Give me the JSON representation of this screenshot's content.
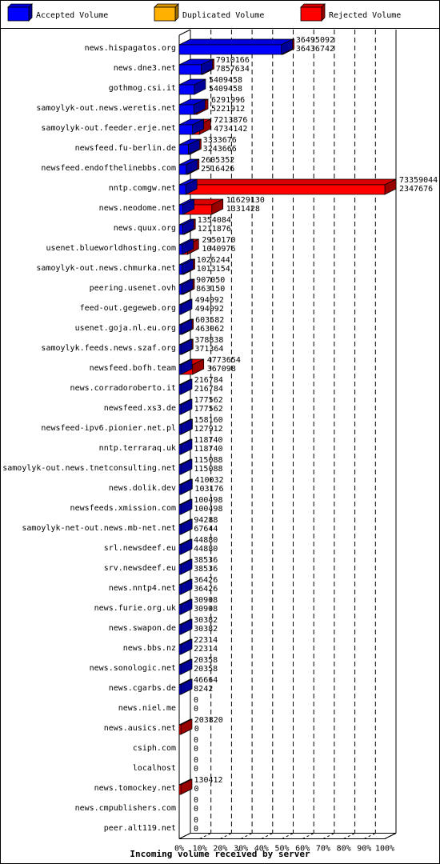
{
  "chart_data": {
    "type": "bar",
    "orientation": "horizontal",
    "title": "Incoming volume received by server",
    "xlim": [
      0,
      100
    ],
    "x_ticks": [
      "0%",
      "10%",
      "20%",
      "30%",
      "40%",
      "50%",
      "60%",
      "70%",
      "80%",
      "90%",
      "100%"
    ],
    "max_value": 73359044,
    "legend_position": "top",
    "grid": true,
    "legend": [
      {
        "name": "Accepted Volume",
        "color": "#0000ff"
      },
      {
        "name": "Duplicated Volume",
        "color": "#ffb000"
      },
      {
        "name": "Rejected Volume",
        "color": "#ff0000"
      }
    ],
    "categories": [
      {
        "label": "news.hispagatos.org",
        "total": 36495092,
        "accepted": 36436742
      },
      {
        "label": "news.dne3.net",
        "total": 7910166,
        "accepted": 7857634
      },
      {
        "label": "gothmog.csi.it",
        "total": 5409458,
        "accepted": 5409458
      },
      {
        "label": "samoylyk-out.news.weretis.net",
        "total": 6291996,
        "accepted": 5221912
      },
      {
        "label": "samoylyk-out.feeder.erje.net",
        "total": 7213876,
        "accepted": 4734142
      },
      {
        "label": "newsfeed.fu-berlin.de",
        "total": 3333676,
        "accepted": 3243666
      },
      {
        "label": "newsfeed.endofthelinebbs.com",
        "total": 2605352,
        "accepted": 2516426
      },
      {
        "label": "nntp.comgw.net",
        "total": 73359044,
        "accepted": 2347676
      },
      {
        "label": "news.neodome.net",
        "total": 11629130,
        "accepted": 1331428
      },
      {
        "label": "news.quux.org",
        "total": 1354084,
        "accepted": 1211876
      },
      {
        "label": "usenet.blueworldhosting.com",
        "total": 2950170,
        "accepted": 1040976
      },
      {
        "label": "samoylyk-out.news.chmurka.net",
        "total": 1026244,
        "accepted": 1013154
      },
      {
        "label": "peering.usenet.ovh",
        "total": 907050,
        "accepted": 863150
      },
      {
        "label": "feed-out.gegeweb.org",
        "total": 494092,
        "accepted": 494092
      },
      {
        "label": "usenet.goja.nl.eu.org",
        "total": 603582,
        "accepted": 463062
      },
      {
        "label": "samoylyk.feeds.news.szaf.org",
        "total": 378838,
        "accepted": 371364
      },
      {
        "label": "newsfeed.bofh.team",
        "total": 4773654,
        "accepted": 367098
      },
      {
        "label": "news.corradoroberto.it",
        "total": 216784,
        "accepted": 216784
      },
      {
        "label": "newsfeed.xs3.de",
        "total": 177562,
        "accepted": 177562
      },
      {
        "label": "newsfeed-ipv6.pionier.net.pl",
        "total": 158160,
        "accepted": 127912
      },
      {
        "label": "nntp.terraraq.uk",
        "total": 118740,
        "accepted": 118740
      },
      {
        "label": "samoylyk-out.news.tnetconsulting.net",
        "total": 115088,
        "accepted": 115088
      },
      {
        "label": "news.dolik.dev",
        "total": 410032,
        "accepted": 103176
      },
      {
        "label": "newsfeeds.xmission.com",
        "total": 100498,
        "accepted": 100498
      },
      {
        "label": "samoylyk-net-out.news.mb-net.net",
        "total": 94288,
        "accepted": 67644
      },
      {
        "label": "srl.newsdeef.eu",
        "total": 44880,
        "accepted": 44880
      },
      {
        "label": "srv.newsdeef.eu",
        "total": 38536,
        "accepted": 38536
      },
      {
        "label": "news.nntp4.net",
        "total": 36426,
        "accepted": 36426
      },
      {
        "label": "news.furie.org.uk",
        "total": 30908,
        "accepted": 30908
      },
      {
        "label": "news.swapon.de",
        "total": 30382,
        "accepted": 30382
      },
      {
        "label": "news.bbs.nz",
        "total": 22314,
        "accepted": 22314
      },
      {
        "label": "news.sonologic.net",
        "total": 20358,
        "accepted": 20358
      },
      {
        "label": "news.cgarbs.de",
        "total": 46664,
        "accepted": 8242
      },
      {
        "label": "news.niel.me",
        "total": 0,
        "accepted": 0
      },
      {
        "label": "news.ausics.net",
        "total": 203820,
        "accepted": 0
      },
      {
        "label": "csiph.com",
        "total": 0,
        "accepted": 0
      },
      {
        "label": "localhost",
        "total": 0,
        "accepted": 0
      },
      {
        "label": "news.tomockey.net",
        "total": 130412,
        "accepted": 0
      },
      {
        "label": "news.cmpublishers.com",
        "total": 0,
        "accepted": 0
      },
      {
        "label": "peer.alt119.net",
        "total": 0,
        "accepted": 0
      }
    ]
  }
}
